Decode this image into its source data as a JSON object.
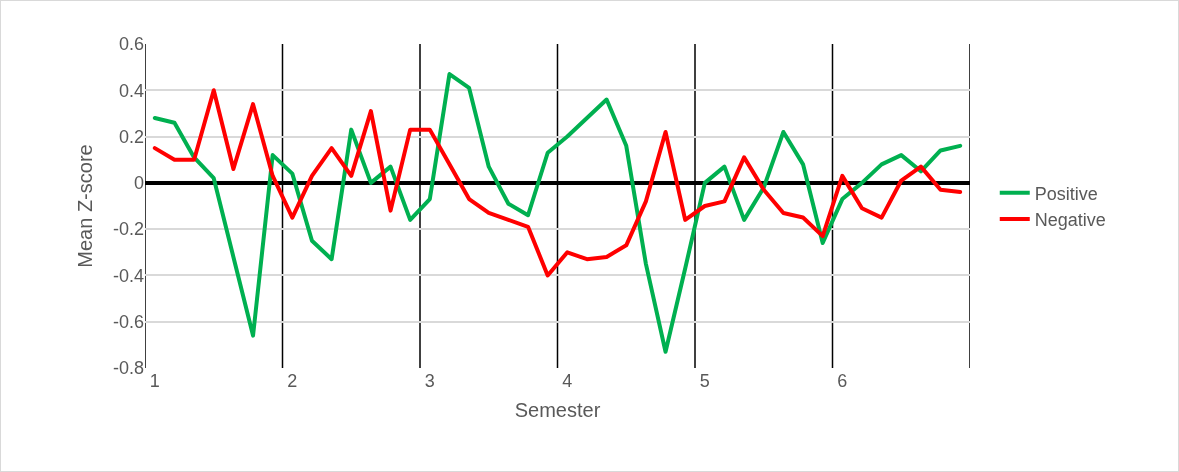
{
  "chart_data": {
    "type": "line",
    "xlabel": "Semester",
    "ylabel": "Mean Z-score",
    "categories": [
      "1",
      null,
      null,
      null,
      null,
      null,
      null,
      "2",
      null,
      null,
      null,
      null,
      null,
      null,
      "3",
      null,
      null,
      null,
      null,
      null,
      null,
      "4",
      null,
      null,
      null,
      null,
      null,
      null,
      "5",
      null,
      null,
      null,
      null,
      null,
      null,
      "6",
      null,
      null,
      null,
      null,
      null,
      null
    ],
    "series": [
      {
        "name": "Positive",
        "color": "#00b050",
        "values": [
          0.28,
          0.26,
          0.11,
          0.02,
          -0.32,
          -0.66,
          0.12,
          0.04,
          -0.25,
          -0.33,
          0.23,
          0.0,
          0.07,
          -0.16,
          -0.07,
          0.47,
          0.41,
          0.07,
          -0.09,
          -0.14,
          0.13,
          0.2,
          0.28,
          0.36,
          0.16,
          -0.35,
          -0.73,
          -0.37,
          0.0,
          0.07,
          -0.16,
          -0.02,
          0.22,
          0.08,
          -0.26,
          -0.07,
          0.0,
          0.08,
          0.12,
          0.05,
          0.14,
          0.16
        ]
      },
      {
        "name": "Negative",
        "color": "#ff0000",
        "values": [
          0.15,
          0.1,
          0.1,
          0.4,
          0.06,
          0.34,
          0.03,
          -0.15,
          0.03,
          0.15,
          0.03,
          0.31,
          -0.12,
          0.23,
          0.23,
          0.08,
          -0.07,
          -0.13,
          -0.16,
          -0.19,
          -0.4,
          -0.3,
          -0.33,
          -0.32,
          -0.27,
          -0.08,
          0.22,
          -0.16,
          -0.1,
          -0.08,
          0.11,
          -0.03,
          -0.13,
          -0.15,
          -0.23,
          0.03,
          -0.11,
          -0.15,
          0.01,
          0.07,
          -0.03,
          -0.04
        ]
      }
    ],
    "ylim": [
      -0.8,
      0.6
    ],
    "yticks": [
      -0.8,
      -0.6,
      -0.4,
      -0.2,
      0,
      0.2,
      0.4,
      0.6
    ],
    "grid": true,
    "legend": "right",
    "marker": "none",
    "line_style": "solid"
  }
}
